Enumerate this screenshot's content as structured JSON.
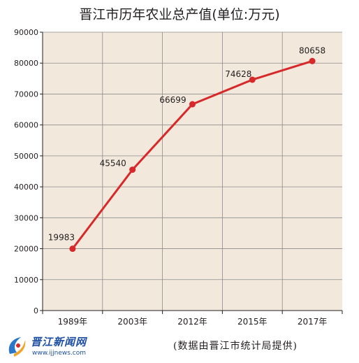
{
  "chart_data": {
    "type": "line",
    "title": "晋江市历年农业总产值(单位:万元)",
    "categories": [
      "1989年",
      "2003年",
      "2012年",
      "2015年",
      "2017年"
    ],
    "values": [
      19983,
      45540,
      66699,
      74628,
      80658
    ],
    "data_labels": [
      "19983",
      "45540",
      "66699",
      "74628",
      "80658"
    ],
    "ylim": [
      0,
      90000
    ],
    "yticks": [
      "0",
      "10000",
      "20000",
      "30000",
      "40000",
      "50000",
      "60000",
      "70000",
      "80000",
      "90000"
    ],
    "grid": true,
    "line_color": "#d7282a",
    "plot_background": "#f3e8dc",
    "grid_color": "#8c8c8c"
  },
  "logo": {
    "name": "晋江新闻网",
    "url": "www.ijjnews.com"
  },
  "source_note": "(数据由晋江市统计局提供)"
}
